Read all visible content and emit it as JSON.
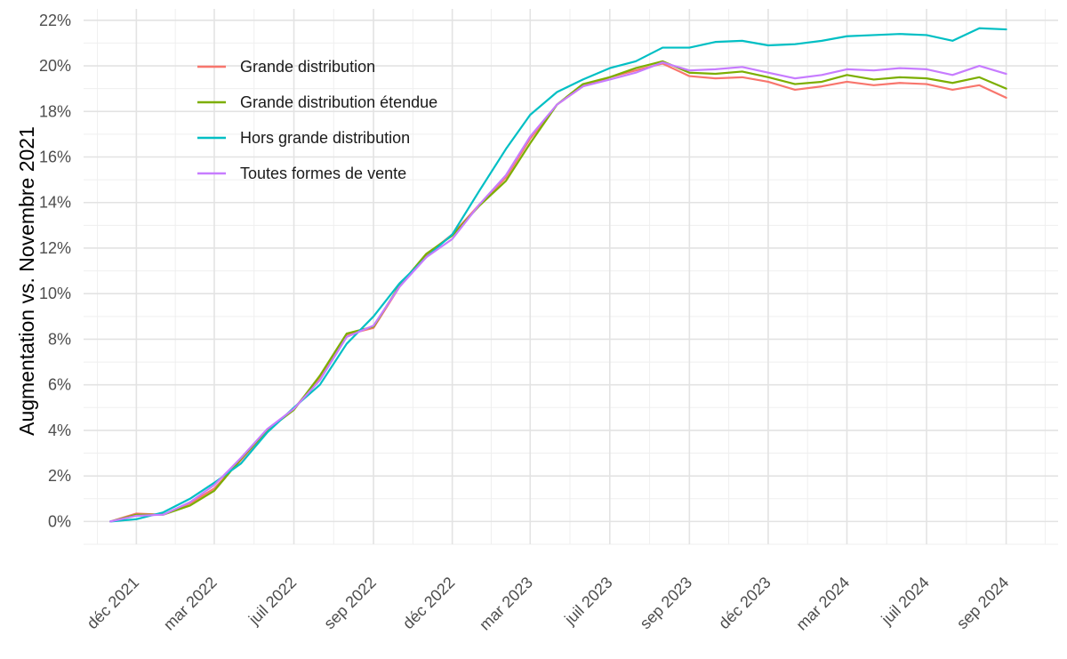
{
  "chart_data": {
    "type": "line",
    "title": "",
    "xlabel": "",
    "ylabel": "Augmentation vs. Novembre 2021",
    "ylim": [
      -1,
      22.5
    ],
    "xlim": [
      "2021-10-01",
      "2024-10-31"
    ],
    "y_ticks": [
      0,
      2,
      4,
      6,
      8,
      10,
      12,
      14,
      16,
      18,
      20,
      22
    ],
    "y_tick_labels": [
      "0%",
      "2%",
      "4%",
      "6%",
      "8%",
      "10%",
      "12%",
      "14%",
      "16%",
      "18%",
      "20%",
      "22%"
    ],
    "x_ticks": [
      "2021-12-01",
      "2022-03-01",
      "2022-06-01",
      "2022-09-01",
      "2022-12-01",
      "2023-03-01",
      "2023-06-01",
      "2023-09-01",
      "2023-12-01",
      "2024-03-01",
      "2024-06-01",
      "2024-09-01"
    ],
    "x_tick_labels": [
      "déc 2021",
      "mar 2022",
      "juil 2022",
      "sep 2022",
      "déc 2022",
      "mar 2023",
      "juil 2023",
      "sep 2023",
      "déc 2023",
      "mar 2024",
      "juil 2024",
      "sep 2024"
    ],
    "grid": true,
    "legend_position": "top-left",
    "x": [
      "2021-11-01",
      "2021-12-01",
      "2022-01-01",
      "2022-02-01",
      "2022-03-01",
      "2022-04-01",
      "2022-05-01",
      "2022-06-01",
      "2022-07-01",
      "2022-08-01",
      "2022-09-01",
      "2022-10-01",
      "2022-11-01",
      "2022-12-01",
      "2023-01-01",
      "2023-02-01",
      "2023-03-01",
      "2023-04-01",
      "2023-05-01",
      "2023-06-01",
      "2023-07-01",
      "2023-08-01",
      "2023-09-01",
      "2023-10-01",
      "2023-11-01",
      "2023-12-01",
      "2024-01-01",
      "2024-02-01",
      "2024-03-01",
      "2024-04-01",
      "2024-05-01",
      "2024-06-01",
      "2024-07-01",
      "2024-08-01",
      "2024-09-01"
    ],
    "series": [
      {
        "name": "Grande distribution",
        "color": "#f8766d",
        "values": [
          0.0,
          0.35,
          0.3,
          0.8,
          1.45,
          2.7,
          4.0,
          4.95,
          6.3,
          8.2,
          8.5,
          10.3,
          11.7,
          12.6,
          13.9,
          15.1,
          16.8,
          18.3,
          19.1,
          19.5,
          19.8,
          20.1,
          19.55,
          19.45,
          19.5,
          19.3,
          18.95,
          19.1,
          19.3,
          19.15,
          19.25,
          19.2,
          18.95,
          19.15,
          18.6
        ]
      },
      {
        "name": "Grande distribution étendue",
        "color": "#7cae00",
        "values": [
          0.0,
          0.3,
          0.3,
          0.7,
          1.35,
          2.75,
          4.0,
          4.9,
          6.4,
          8.25,
          8.55,
          10.35,
          11.75,
          12.55,
          13.85,
          14.95,
          16.6,
          18.3,
          19.2,
          19.5,
          19.9,
          20.2,
          19.7,
          19.65,
          19.75,
          19.5,
          19.2,
          19.3,
          19.6,
          19.4,
          19.5,
          19.45,
          19.25,
          19.5,
          19.0
        ]
      },
      {
        "name": "Hors grande distribution",
        "color": "#00bfc4",
        "values": [
          0.0,
          0.1,
          0.4,
          1.0,
          1.7,
          2.55,
          3.9,
          5.0,
          6.0,
          7.8,
          9.0,
          10.45,
          11.6,
          12.6,
          14.5,
          16.35,
          17.85,
          18.85,
          19.4,
          19.9,
          20.2,
          20.8,
          20.8,
          21.05,
          21.1,
          20.9,
          20.95,
          21.1,
          21.3,
          21.35,
          21.4,
          21.35,
          21.1,
          21.65,
          21.6
        ]
      },
      {
        "name": "Toutes formes de vente",
        "color": "#c77cff",
        "values": [
          0.0,
          0.25,
          0.3,
          0.85,
          1.6,
          2.8,
          4.05,
          4.95,
          6.2,
          8.1,
          8.6,
          10.3,
          11.6,
          12.4,
          13.9,
          15.2,
          16.9,
          18.3,
          19.1,
          19.4,
          19.7,
          20.15,
          19.8,
          19.85,
          19.95,
          19.7,
          19.45,
          19.6,
          19.85,
          19.8,
          19.9,
          19.85,
          19.6,
          20.0,
          19.65
        ]
      }
    ]
  }
}
